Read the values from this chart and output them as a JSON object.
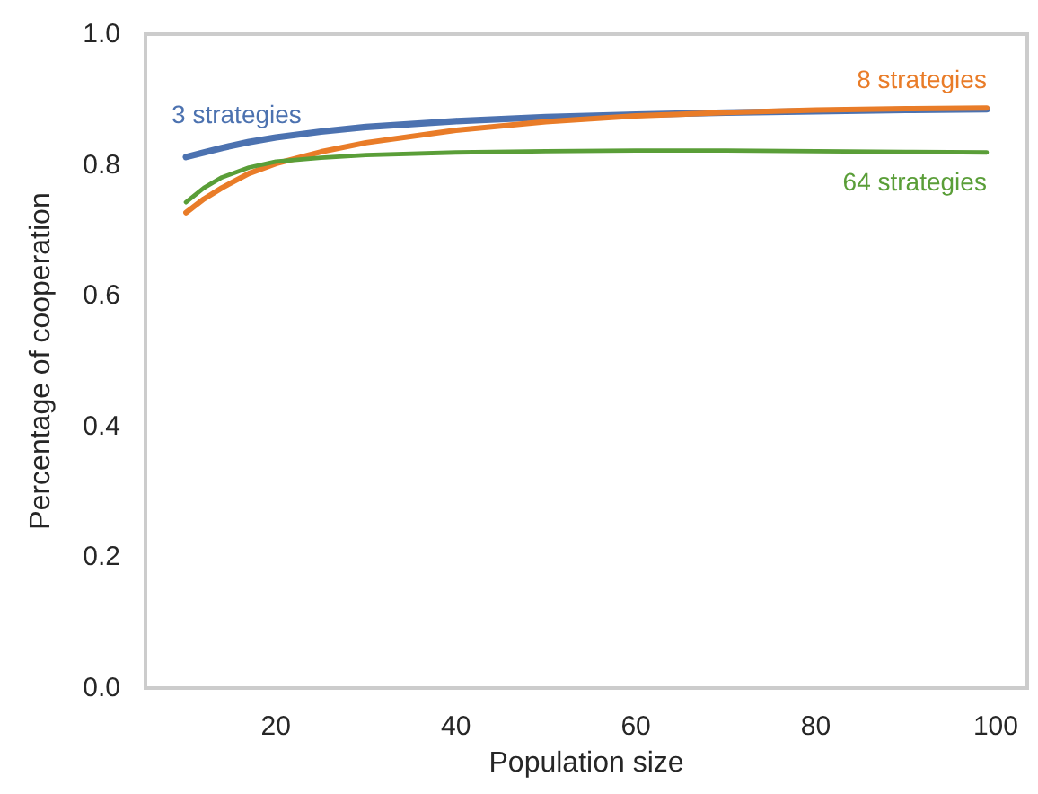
{
  "chart_data": {
    "type": "line",
    "xlabel": "Population size",
    "ylabel": "Percentage of cooperation",
    "xlim": [
      5.5,
      103.5
    ],
    "xticks": [
      20,
      40,
      60,
      80,
      100
    ],
    "ylim": [
      0,
      1
    ],
    "yticks": [
      {
        "value": 0,
        "label": "0.0"
      },
      {
        "value": 0.2,
        "label": "0.2"
      },
      {
        "value": 0.4,
        "label": "0.4"
      },
      {
        "value": 0.6,
        "label": "0.6"
      },
      {
        "value": 0.8,
        "label": "0.8"
      },
      {
        "value": 1,
        "label": "1.0"
      }
    ],
    "grid": false,
    "legend": false,
    "marker": "none",
    "line_style": "solid",
    "x": [
      10,
      12,
      14,
      17,
      20,
      25,
      30,
      40,
      50,
      60,
      70,
      80,
      90,
      99
    ],
    "series": [
      {
        "name": "3 strategies",
        "color": "#4c72b0",
        "values": [
          0.812,
          0.819,
          0.826,
          0.835,
          0.842,
          0.851,
          0.858,
          0.867,
          0.873,
          0.877,
          0.88,
          0.882,
          0.884,
          0.885
        ]
      },
      {
        "name": "8 strategies",
        "color": "#e97c28",
        "values": [
          0.727,
          0.748,
          0.765,
          0.787,
          0.802,
          0.82,
          0.834,
          0.853,
          0.866,
          0.875,
          0.88,
          0.884,
          0.886,
          0.887
        ]
      },
      {
        "name": "64 strategies",
        "color": "#5a9e38",
        "values": [
          0.743,
          0.765,
          0.781,
          0.796,
          0.805,
          0.811,
          0.815,
          0.819,
          0.821,
          0.822,
          0.822,
          0.821,
          0.82,
          0.819
        ]
      }
    ]
  }
}
